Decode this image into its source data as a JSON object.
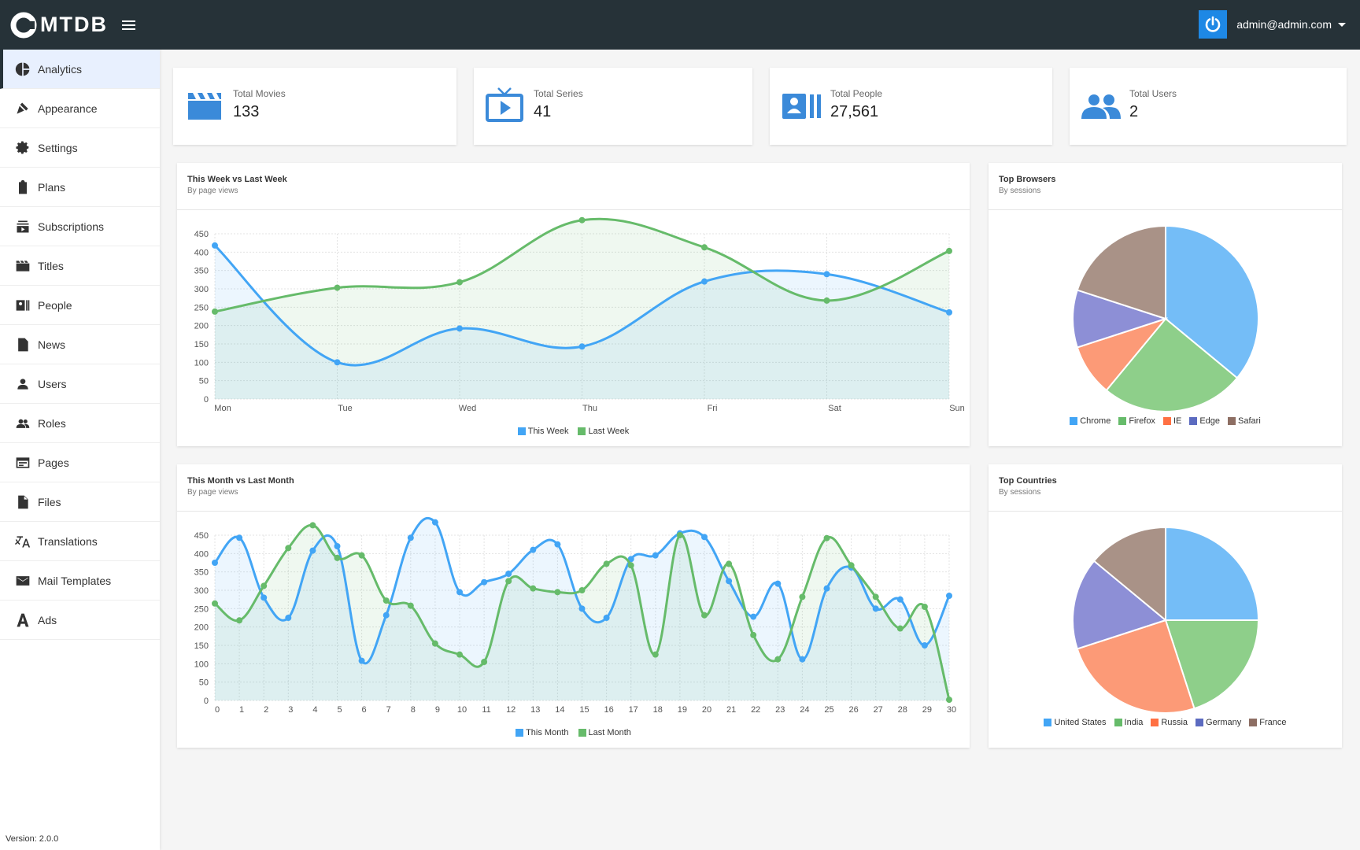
{
  "app": {
    "title": "MTDB",
    "account_email": "admin@admin.com",
    "version": "Version: 2.0.0"
  },
  "sidebar": {
    "items": [
      {
        "label": "Analytics",
        "icon": "pie-chart-icon",
        "active": true
      },
      {
        "label": "Appearance",
        "icon": "paint-brush-icon"
      },
      {
        "label": "Settings",
        "icon": "gear-icon"
      },
      {
        "label": "Plans",
        "icon": "clipboard-icon"
      },
      {
        "label": "Subscriptions",
        "icon": "subscriptions-icon"
      },
      {
        "label": "Titles",
        "icon": "movie-icon"
      },
      {
        "label": "People",
        "icon": "contact-icon"
      },
      {
        "label": "News",
        "icon": "document-icon"
      },
      {
        "label": "Users",
        "icon": "person-icon"
      },
      {
        "label": "Roles",
        "icon": "group-icon"
      },
      {
        "label": "Pages",
        "icon": "web-page-icon"
      },
      {
        "label": "Files",
        "icon": "file-icon"
      },
      {
        "label": "Translations",
        "icon": "translate-icon"
      },
      {
        "label": "Mail Templates",
        "icon": "mail-icon"
      },
      {
        "label": "Ads",
        "icon": "ads-icon"
      }
    ]
  },
  "stats": [
    {
      "label": "Total Movies",
      "value": "133",
      "icon": "clapperboard-icon"
    },
    {
      "label": "Total Series",
      "value": "41",
      "icon": "tv-icon"
    },
    {
      "label": "Total People",
      "value": "27,561",
      "icon": "contact-card-icon"
    },
    {
      "label": "Total Users",
      "value": "2",
      "icon": "people-icon"
    }
  ],
  "colors": {
    "blue": "#42a5f5",
    "green": "#66bb6a",
    "topbar": "#263238",
    "accent": "#1e88e5"
  },
  "weekly": {
    "title": "This Week vs Last Week",
    "subtitle": "By page views",
    "legend": [
      "This Week",
      "Last Week"
    ]
  },
  "monthly": {
    "title": "This Month vs Last Month",
    "subtitle": "By page views",
    "legend": [
      "This Month",
      "Last Month"
    ]
  },
  "browsers": {
    "title": "Top Browsers",
    "subtitle": "By sessions",
    "legend": [
      "Chrome",
      "Firefox",
      "IE",
      "Edge",
      "Safari"
    ]
  },
  "countries": {
    "title": "Top Countries",
    "subtitle": "By sessions",
    "legend": [
      "United States",
      "India",
      "Russia",
      "Germany",
      "France"
    ]
  },
  "chart_data": [
    {
      "type": "line",
      "title": "This Week vs Last Week",
      "categories": [
        "Mon",
        "Tue",
        "Wed",
        "Thu",
        "Fri",
        "Sat",
        "Sun"
      ],
      "ylim": [
        0,
        450
      ],
      "yticks": [
        0,
        50,
        100,
        150,
        200,
        250,
        300,
        350,
        400,
        450
      ],
      "series": [
        {
          "name": "This Week",
          "color": "#42a5f5",
          "values": [
            418,
            100,
            192,
            143,
            320,
            340,
            236
          ]
        },
        {
          "name": "Last Week",
          "color": "#66bb6a",
          "values": [
            238,
            303,
            318,
            487,
            413,
            268,
            403
          ]
        }
      ],
      "legend": "bottom"
    },
    {
      "type": "line",
      "title": "This Month vs Last Month",
      "categories": [
        "0",
        "1",
        "2",
        "3",
        "4",
        "5",
        "6",
        "7",
        "8",
        "9",
        "10",
        "11",
        "12",
        "13",
        "14",
        "15",
        "16",
        "17",
        "18",
        "19",
        "20",
        "21",
        "22",
        "23",
        "24",
        "25",
        "26",
        "27",
        "28",
        "29",
        "30"
      ],
      "ylim": [
        0,
        450
      ],
      "yticks": [
        0,
        50,
        100,
        150,
        200,
        250,
        300,
        350,
        400,
        450
      ],
      "series": [
        {
          "name": "This Month",
          "color": "#42a5f5",
          "values": [
            375,
            443,
            280,
            225,
            408,
            420,
            108,
            232,
            443,
            485,
            295,
            322,
            345,
            410,
            425,
            250,
            225,
            385,
            395,
            455,
            445,
            325,
            228,
            318,
            112,
            305,
            362,
            250,
            275,
            150,
            285
          ]
        },
        {
          "name": "Last Month",
          "color": "#66bb6a",
          "values": [
            264,
            218,
            312,
            415,
            477,
            388,
            395,
            272,
            258,
            155,
            125,
            105,
            325,
            305,
            295,
            300,
            372,
            368,
            125,
            450,
            232,
            372,
            178,
            112,
            282,
            442,
            368,
            282,
            196,
            255,
            2
          ]
        }
      ],
      "legend": "bottom"
    },
    {
      "type": "pie",
      "title": "Top Browsers",
      "categories": [
        "Chrome",
        "Firefox",
        "IE",
        "Edge",
        "Safari"
      ],
      "values": [
        36,
        25,
        9,
        10,
        20
      ],
      "colors": [
        "#74bdf7",
        "#8ecf8a",
        "#fc9a77",
        "#8d8fd6",
        "#a99287"
      ],
      "legend": "bottom"
    },
    {
      "type": "pie",
      "title": "Top Countries",
      "categories": [
        "United States",
        "India",
        "Russia",
        "Germany",
        "France"
      ],
      "values": [
        25,
        20,
        25,
        16,
        14
      ],
      "colors": [
        "#74bdf7",
        "#8ecf8a",
        "#fc9a77",
        "#8d8fd6",
        "#a99287"
      ],
      "legend": "bottom"
    }
  ]
}
